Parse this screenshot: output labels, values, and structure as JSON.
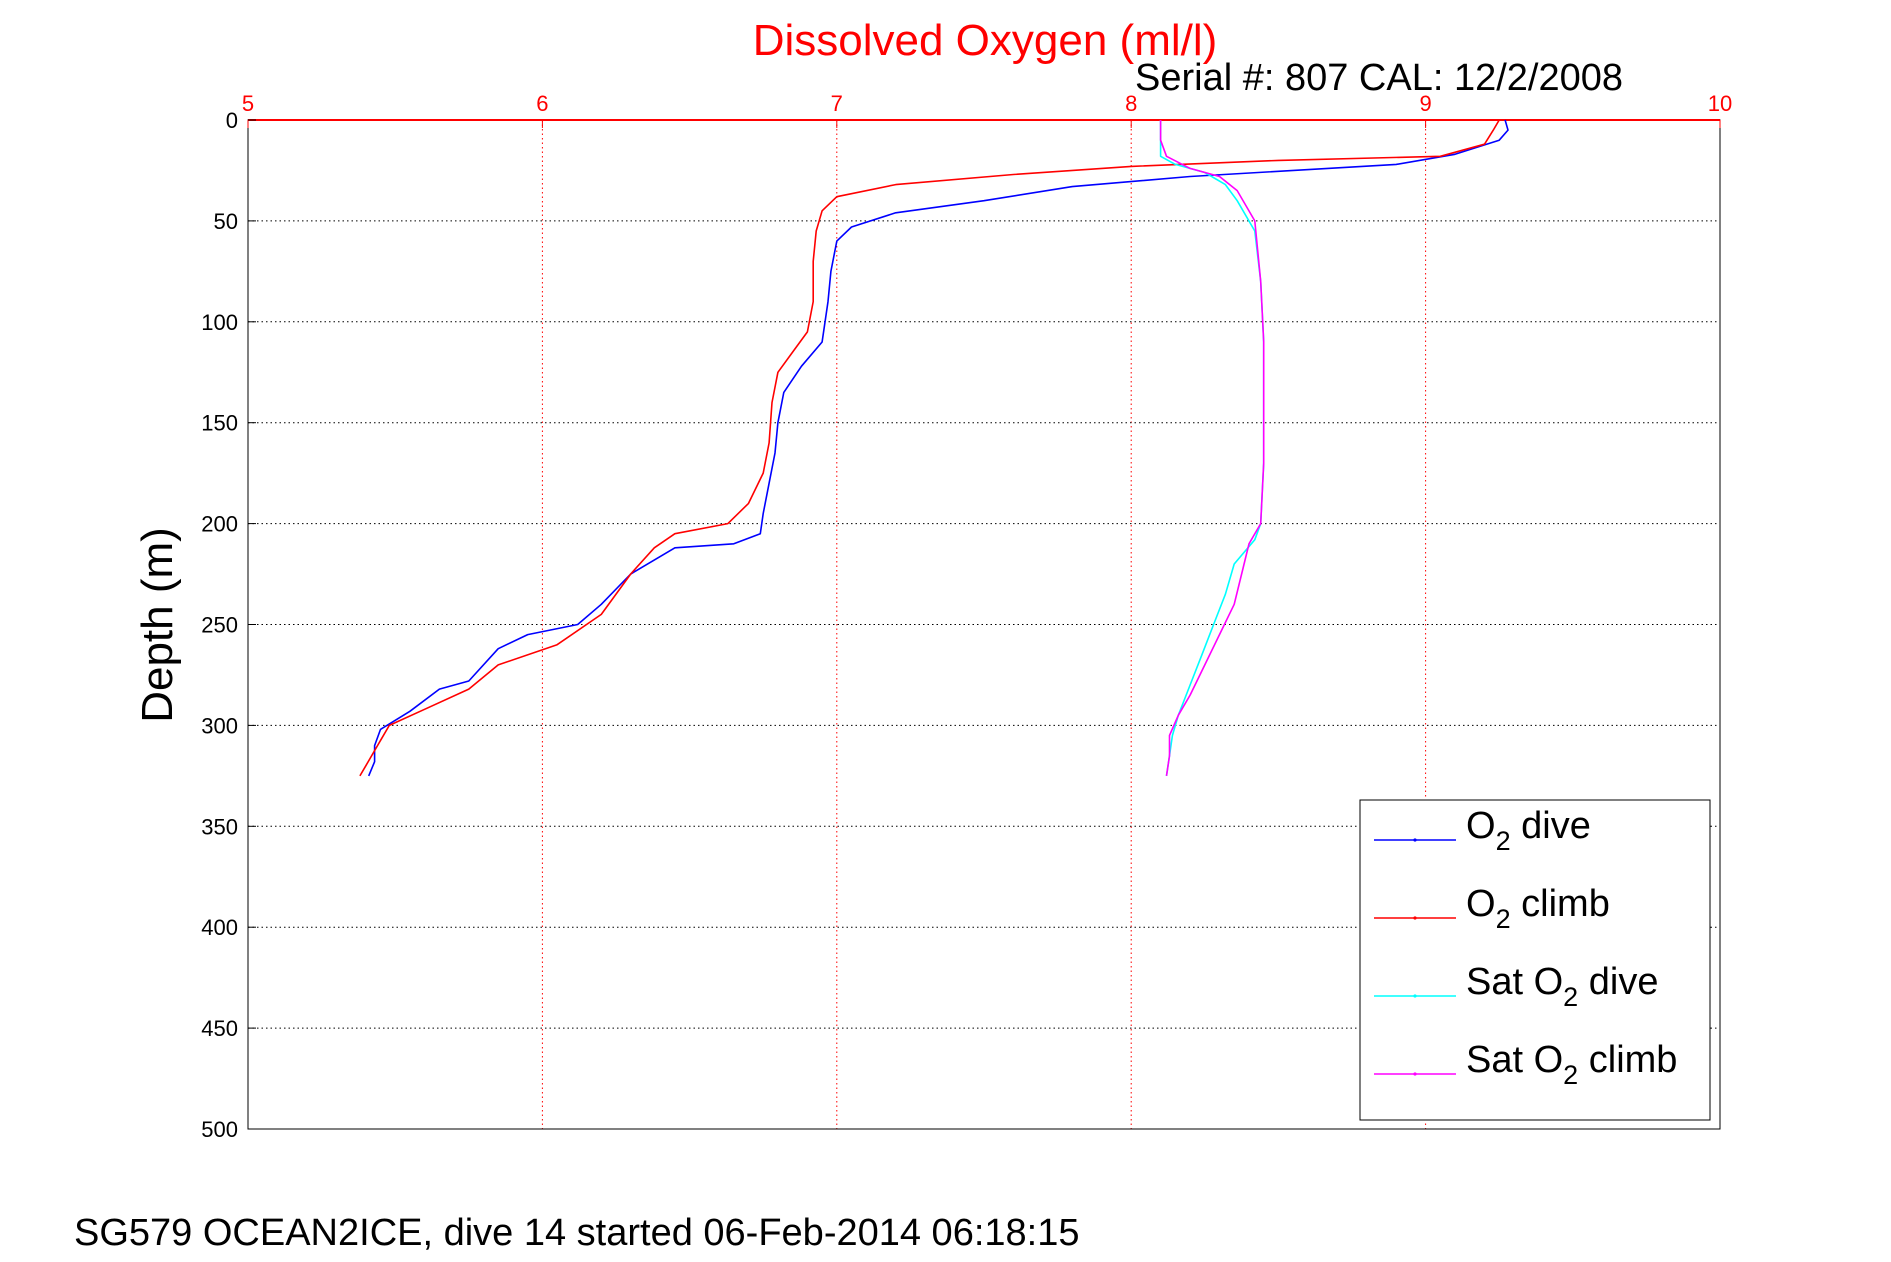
{
  "chart_data": {
    "type": "line",
    "title": "Dissolved Oxygen (ml/l)",
    "subtitle": "Serial #: 807  CAL: 12/2/2008",
    "xlabel": "",
    "ylabel": "Depth (m)",
    "xlim": [
      5,
      10
    ],
    "ylim": [
      0,
      500
    ],
    "y_reversed": true,
    "x_axis_location": "top",
    "xticks": [
      "5",
      "6",
      "7",
      "8",
      "9",
      "10"
    ],
    "yticks": [
      "0",
      "50",
      "100",
      "150",
      "200",
      "250",
      "300",
      "350",
      "400",
      "450",
      "500"
    ],
    "grid": true,
    "legend_position": "bottom-right",
    "colors": {
      "title": "#ff0000",
      "x_axis": "#ff0000",
      "y_axis": "#000000"
    },
    "series": [
      {
        "legend_prefix": "O",
        "legend_sub": "2",
        "legend_suffix": " dive",
        "color": "#0000ff",
        "points": [
          [
            9.27,
            0
          ],
          [
            9.28,
            5
          ],
          [
            9.25,
            10
          ],
          [
            9.1,
            17
          ],
          [
            8.9,
            22
          ],
          [
            8.2,
            28
          ],
          [
            7.8,
            33
          ],
          [
            7.5,
            40
          ],
          [
            7.2,
            46
          ],
          [
            7.05,
            53
          ],
          [
            7.0,
            60
          ],
          [
            6.98,
            75
          ],
          [
            6.97,
            90
          ],
          [
            6.95,
            110
          ],
          [
            6.88,
            122
          ],
          [
            6.82,
            135
          ],
          [
            6.8,
            150
          ],
          [
            6.79,
            165
          ],
          [
            6.77,
            180
          ],
          [
            6.75,
            195
          ],
          [
            6.74,
            205
          ],
          [
            6.65,
            210
          ],
          [
            6.45,
            212
          ],
          [
            6.3,
            225
          ],
          [
            6.2,
            240
          ],
          [
            6.12,
            250
          ],
          [
            5.95,
            255
          ],
          [
            5.85,
            262
          ],
          [
            5.75,
            278
          ],
          [
            5.65,
            282
          ],
          [
            5.55,
            293
          ],
          [
            5.45,
            302
          ],
          [
            5.43,
            310
          ],
          [
            5.43,
            318
          ],
          [
            5.41,
            325
          ]
        ]
      },
      {
        "legend_prefix": "O",
        "legend_sub": "2",
        "legend_suffix": " climb",
        "color": "#ff0000",
        "points": [
          [
            9.25,
            0
          ],
          [
            9.23,
            5
          ],
          [
            9.2,
            12
          ],
          [
            9.05,
            18
          ],
          [
            8.5,
            20
          ],
          [
            8.0,
            23
          ],
          [
            7.6,
            27
          ],
          [
            7.2,
            32
          ],
          [
            7.0,
            38
          ],
          [
            6.95,
            45
          ],
          [
            6.93,
            55
          ],
          [
            6.92,
            70
          ],
          [
            6.92,
            90
          ],
          [
            6.9,
            105
          ],
          [
            6.85,
            115
          ],
          [
            6.8,
            125
          ],
          [
            6.78,
            140
          ],
          [
            6.77,
            160
          ],
          [
            6.75,
            175
          ],
          [
            6.7,
            190
          ],
          [
            6.63,
            200
          ],
          [
            6.45,
            205
          ],
          [
            6.38,
            212
          ],
          [
            6.3,
            225
          ],
          [
            6.2,
            245
          ],
          [
            6.05,
            260
          ],
          [
            5.85,
            270
          ],
          [
            5.75,
            282
          ],
          [
            5.6,
            292
          ],
          [
            5.48,
            300
          ],
          [
            5.44,
            310
          ],
          [
            5.4,
            320
          ],
          [
            5.38,
            325
          ]
        ]
      },
      {
        "legend_prefix": "Sat O",
        "legend_sub": "2",
        "legend_suffix": " dive",
        "color": "#00ffff",
        "points": [
          [
            8.1,
            0
          ],
          [
            8.1,
            10
          ],
          [
            8.1,
            18
          ],
          [
            8.15,
            22
          ],
          [
            8.25,
            26
          ],
          [
            8.32,
            32
          ],
          [
            8.36,
            40
          ],
          [
            8.42,
            55
          ],
          [
            8.44,
            80
          ],
          [
            8.45,
            110
          ],
          [
            8.45,
            140
          ],
          [
            8.45,
            170
          ],
          [
            8.44,
            200
          ],
          [
            8.42,
            208
          ],
          [
            8.35,
            220
          ],
          [
            8.32,
            235
          ],
          [
            8.28,
            250
          ],
          [
            8.24,
            265
          ],
          [
            8.2,
            280
          ],
          [
            8.16,
            295
          ],
          [
            8.14,
            305
          ],
          [
            8.13,
            315
          ],
          [
            8.12,
            325
          ]
        ]
      },
      {
        "legend_prefix": "Sat O",
        "legend_sub": "2",
        "legend_suffix": " climb",
        "color": "#ff00ff",
        "points": [
          [
            8.1,
            0
          ],
          [
            8.1,
            10
          ],
          [
            8.12,
            18
          ],
          [
            8.2,
            24
          ],
          [
            8.3,
            28
          ],
          [
            8.36,
            35
          ],
          [
            8.42,
            50
          ],
          [
            8.44,
            80
          ],
          [
            8.45,
            110
          ],
          [
            8.45,
            140
          ],
          [
            8.45,
            170
          ],
          [
            8.44,
            200
          ],
          [
            8.4,
            210
          ],
          [
            8.38,
            222
          ],
          [
            8.35,
            240
          ],
          [
            8.3,
            255
          ],
          [
            8.25,
            270
          ],
          [
            8.2,
            285
          ],
          [
            8.16,
            295
          ],
          [
            8.13,
            305
          ],
          [
            8.13,
            315
          ],
          [
            8.12,
            325
          ]
        ]
      }
    ]
  },
  "footer": "SG579 OCEAN2ICE, dive 14 started 06-Feb-2014 06:18:15"
}
